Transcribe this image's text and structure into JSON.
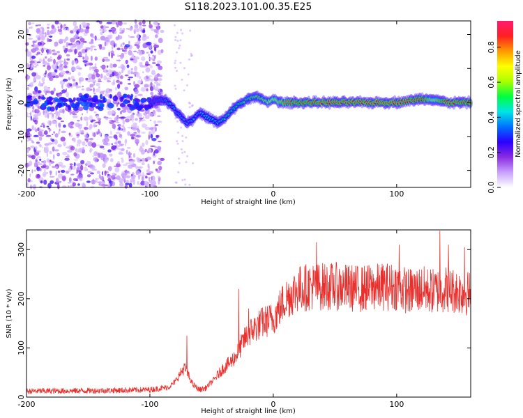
{
  "title": "S118.2023.101.00.35.E25",
  "chart_data": [
    {
      "type": "heatmap",
      "xlabel": "Height of straight line (km)",
      "ylabel": "Frequency (Hz)",
      "xlim": [
        -200,
        160
      ],
      "ylim": [
        -25,
        24
      ],
      "xticks": [
        -200,
        -100,
        0,
        100
      ],
      "yticks": [
        20,
        10,
        0,
        -10,
        -20
      ],
      "grid": false,
      "ridge": {
        "description": "frequency track of peak amplitude",
        "x": [
          -100,
          -90,
          -85,
          -80,
          -75,
          -70,
          -65,
          -60,
          -55,
          -50,
          -45,
          -40,
          -35,
          -30,
          -25,
          -20,
          -15,
          -10,
          -5,
          0,
          5,
          10,
          20,
          40,
          60,
          80,
          100,
          120,
          130,
          140,
          150,
          160
        ],
        "y": [
          0,
          1,
          0,
          -2,
          -4,
          -6,
          -5,
          -3,
          -4,
          -5,
          -6,
          -5,
          -3,
          -1,
          0,
          1,
          2,
          1,
          0,
          1,
          0,
          0,
          0,
          0,
          0,
          0,
          0,
          1,
          1,
          0,
          0,
          0
        ],
        "amplitude": [
          0.3,
          0.35,
          0.4,
          0.4,
          0.4,
          0.4,
          0.4,
          0.4,
          0.45,
          0.45,
          0.45,
          0.5,
          0.5,
          0.5,
          0.55,
          0.55,
          0.6,
          0.6,
          0.65,
          0.7,
          0.75,
          0.8,
          0.85,
          0.9,
          0.9,
          0.9,
          0.9,
          0.88,
          0.7,
          0.9,
          0.88,
          0.85
        ]
      },
      "colorbar": {
        "label": "Normalized spectral amplitude",
        "range": [
          0,
          0.95
        ],
        "ticks": [
          "0.0",
          "0.2",
          "0.4",
          "0.6",
          "0.8"
        ],
        "tick_values": [
          0.0,
          0.2,
          0.4,
          0.6,
          0.8
        ],
        "colors": [
          "#ffffff",
          "#c8a0ff",
          "#8a2be2",
          "#2a00ff",
          "#0070ff",
          "#00e5e5",
          "#00ff40",
          "#aaff00",
          "#ffff00",
          "#ff9900",
          "#ff2020",
          "#ff1a70"
        ]
      }
    },
    {
      "type": "line",
      "xlabel": "Height of straight line (km)",
      "ylabel": "SNR (10 * v/v)",
      "xlim": [
        -200,
        160
      ],
      "ylim": [
        0,
        340
      ],
      "xticks": [
        -200,
        -100,
        0,
        100
      ],
      "yticks": [
        0,
        100,
        200,
        300
      ],
      "grid": false,
      "color": "#e8312e",
      "envelope": {
        "x": [
          -200,
          -150,
          -120,
          -100,
          -85,
          -80,
          -72,
          -70,
          -65,
          -60,
          -55,
          -50,
          -45,
          -40,
          -35,
          -30,
          -25,
          -20,
          -10,
          0,
          10,
          20,
          30,
          50,
          70,
          90,
          100,
          110,
          120,
          130,
          140,
          150,
          160
        ],
        "y": [
          12,
          13,
          14,
          15,
          20,
          30,
          60,
          50,
          25,
          15,
          18,
          30,
          45,
          60,
          70,
          85,
          110,
          130,
          150,
          160,
          200,
          220,
          225,
          225,
          220,
          225,
          225,
          215,
          220,
          215,
          220,
          215,
          210
        ]
      },
      "spikes": {
        "x": [
          -70,
          -28,
          -20,
          35,
          102,
          135,
          142,
          155
        ],
        "y": [
          125,
          220,
          180,
          315,
          310,
          338,
          310,
          305
        ]
      }
    }
  ]
}
